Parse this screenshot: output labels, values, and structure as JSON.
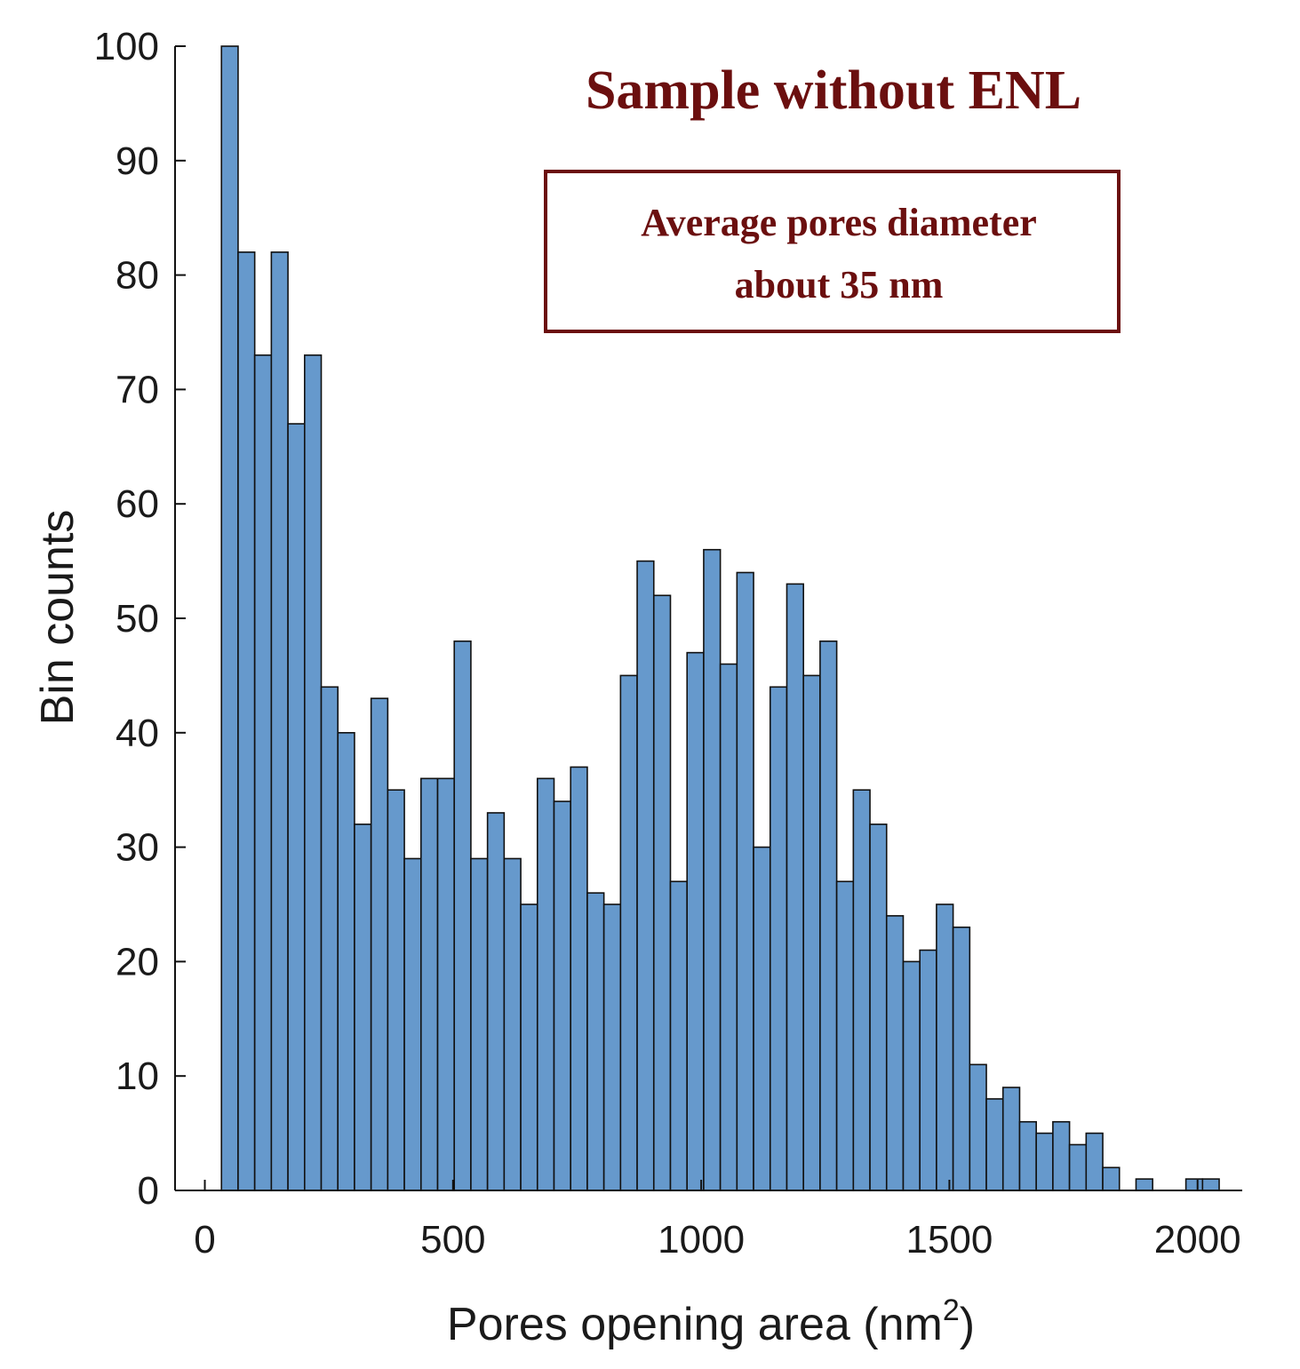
{
  "chart_data": {
    "type": "bar",
    "title": "Sample without ENL",
    "annotation": {
      "line1": "Average pores diameter",
      "line2": "about 35 nm"
    },
    "xlabel_main": "Pores opening area (nm",
    "xlabel_sup": "2",
    "xlabel_close": ")",
    "ylabel": "Bin counts",
    "bin_width": 33.5,
    "x_start": 33.5,
    "xlim": [
      -60,
      2090
    ],
    "ylim": [
      0,
      100
    ],
    "xticks": [
      0,
      500,
      1000,
      1500,
      2000
    ],
    "yticks": [
      0,
      10,
      20,
      30,
      40,
      50,
      60,
      70,
      80,
      90,
      100
    ],
    "values": [
      100,
      82,
      73,
      82,
      67,
      73,
      44,
      40,
      32,
      43,
      35,
      29,
      36,
      36,
      48,
      29,
      33,
      29,
      25,
      36,
      34,
      37,
      26,
      25,
      45,
      55,
      52,
      27,
      47,
      56,
      46,
      54,
      30,
      44,
      53,
      45,
      48,
      27,
      35,
      32,
      24,
      20,
      21,
      25,
      23,
      11,
      8,
      9,
      6,
      5,
      6,
      4,
      5,
      2,
      0,
      1,
      0,
      0,
      1,
      1
    ],
    "bar_color": "#6699cc",
    "accent_color": "#6b0f0f"
  }
}
